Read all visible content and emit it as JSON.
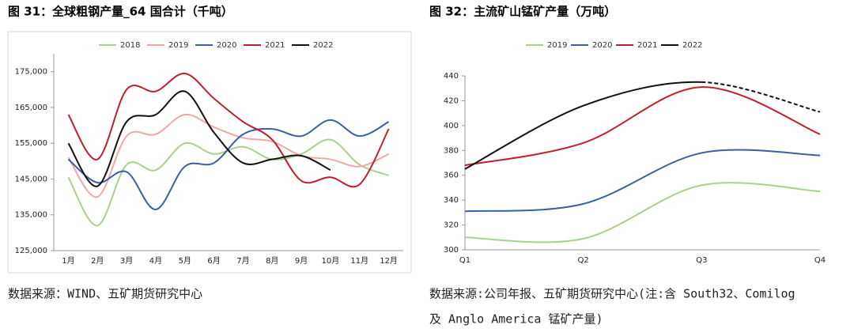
{
  "chart_data": [
    {
      "type": "line",
      "title": "图 31：全球粗钢产量_64 国合计（千吨）",
      "categories": [
        "1月",
        "2月",
        "3月",
        "4月",
        "5月",
        "6月",
        "7月",
        "8月",
        "9月",
        "10月",
        "11月",
        "12月"
      ],
      "series": [
        {
          "name": "2018",
          "color": "#a9d18e",
          "values": [
            145500,
            132000,
            149000,
            147500,
            155000,
            152000,
            154000,
            150500,
            152000,
            156000,
            149000,
            146000
          ]
        },
        {
          "name": "2019",
          "color": "#f4a6a6",
          "values": [
            151000,
            140000,
            157000,
            157500,
            163000,
            159500,
            156500,
            155500,
            151500,
            150500,
            148500,
            152000
          ]
        },
        {
          "name": "2020",
          "color": "#3a5ea8",
          "values": [
            150500,
            144000,
            147000,
            136500,
            148500,
            149500,
            157500,
            159000,
            157000,
            161500,
            157000,
            161000
          ]
        },
        {
          "name": "2021",
          "color": "#c0202a",
          "values": [
            163000,
            150500,
            170000,
            169500,
            174500,
            167500,
            161000,
            156000,
            144500,
            145500,
            143500,
            159000
          ]
        },
        {
          "name": "2022",
          "color": "#111111",
          "values": [
            155000,
            143000,
            161000,
            163000,
            169500,
            158000,
            149500,
            150500,
            151500,
            147500,
            null,
            null
          ]
        }
      ],
      "ylim": [
        125000,
        180000
      ],
      "yticks": [
        {
          "value": 125000,
          "label": "125,000"
        },
        {
          "value": 135000,
          "label": "135,000"
        },
        {
          "value": 145000,
          "label": "145,000"
        },
        {
          "value": 155000,
          "label": "155,000"
        },
        {
          "value": 165000,
          "label": "165,000"
        },
        {
          "value": 175000,
          "label": "175,000"
        }
      ],
      "grid": false,
      "legend": "top"
    },
    {
      "type": "line",
      "title": "图 32：主流矿山锰矿产量（万吨）",
      "categories": [
        "Q1",
        "Q2",
        "Q3",
        "Q4"
      ],
      "series": [
        {
          "name": "2019",
          "color": "#a9d18e",
          "values": [
            310,
            309,
            352,
            347
          ]
        },
        {
          "name": "2020",
          "color": "#3a5ea8",
          "values": [
            331,
            337,
            378,
            376
          ]
        },
        {
          "name": "2021",
          "color": "#c0202a",
          "values": [
            368,
            386,
            431,
            393
          ]
        },
        {
          "name": "2022",
          "color": "#111111",
          "values": [
            365,
            416,
            435,
            411
          ],
          "dashed_from": 2
        }
      ],
      "ylim": [
        300,
        440
      ],
      "yticks": [
        300,
        320,
        340,
        360,
        380,
        400,
        420,
        440
      ],
      "grid": false,
      "legend": "top"
    }
  ],
  "sources": [
    [
      "数据来源：WIND、五矿期货研究中心"
    ],
    [
      "数据来源:公司年报、五矿期货研究中心(注:含 South32、Comilog",
      "及 Anglo America 锰矿产量)"
    ]
  ]
}
